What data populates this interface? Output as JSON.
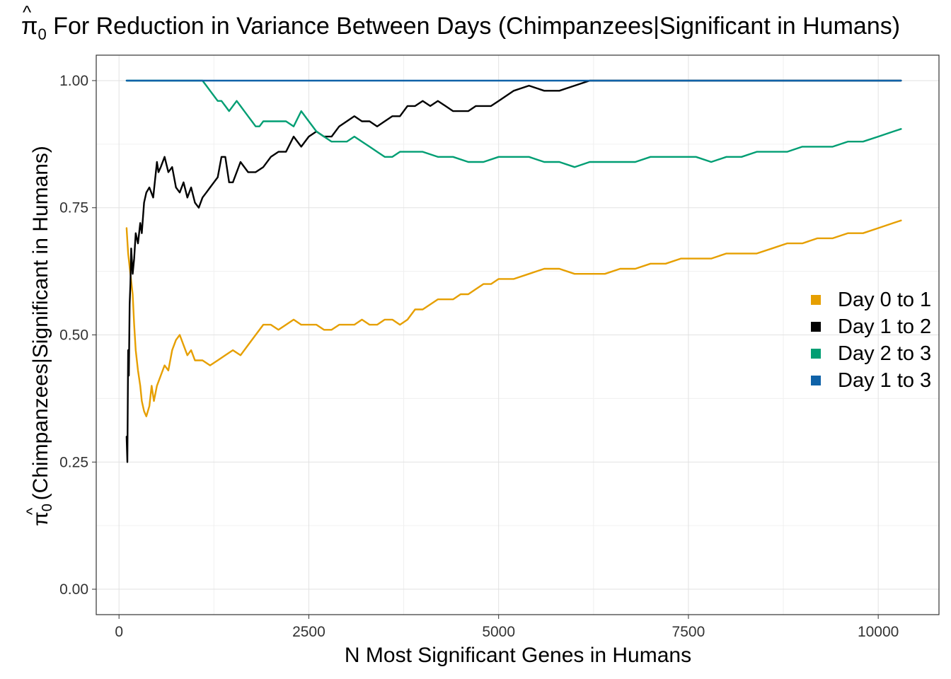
{
  "chart_data": {
    "type": "line",
    "title": "For Reduction in Variance Between Days (Chimpanzees|Significant in Humans)",
    "title_symbol": "π̂0",
    "xlabel": "N Most Significant Genes in Humans",
    "ylabel": "(Chimpanzees|Significant in Humans)",
    "ylabel_symbol": "π̂0",
    "xlim": [
      -300,
      10800
    ],
    "ylim": [
      -0.05,
      1.05
    ],
    "x_ticks": [
      0,
      2500,
      5000,
      7500,
      10000
    ],
    "x_tick_labels": [
      "0",
      "2500",
      "5000",
      "7500",
      "10000"
    ],
    "y_ticks": [
      0,
      0.25,
      0.5,
      0.75,
      1.0
    ],
    "y_tick_labels": [
      "0.00",
      "0.25",
      "0.50",
      "0.75",
      "1.00"
    ],
    "grid": true,
    "legend_position": "right",
    "series": [
      {
        "name": "Day 0 to 1",
        "color": "#E69F00",
        "x": [
          100,
          120,
          150,
          180,
          200,
          220,
          250,
          280,
          300,
          330,
          360,
          400,
          430,
          460,
          500,
          550,
          600,
          650,
          700,
          750,
          800,
          850,
          900,
          950,
          1000,
          1100,
          1200,
          1300,
          1400,
          1500,
          1600,
          1700,
          1800,
          1900,
          2000,
          2100,
          2200,
          2300,
          2400,
          2500,
          2600,
          2700,
          2800,
          2900,
          3000,
          3100,
          3200,
          3300,
          3400,
          3500,
          3600,
          3700,
          3800,
          3900,
          4000,
          4100,
          4200,
          4300,
          4400,
          4500,
          4600,
          4700,
          4800,
          4900,
          5000,
          5200,
          5400,
          5600,
          5800,
          6000,
          6200,
          6400,
          6600,
          6800,
          7000,
          7200,
          7400,
          7600,
          7800,
          8000,
          8200,
          8400,
          8600,
          8800,
          9000,
          9200,
          9400,
          9600,
          9800,
          10000,
          10200,
          10300
        ],
        "y": [
          0.71,
          0.66,
          0.62,
          0.58,
          0.52,
          0.47,
          0.43,
          0.4,
          0.37,
          0.35,
          0.34,
          0.36,
          0.4,
          0.37,
          0.4,
          0.42,
          0.44,
          0.43,
          0.47,
          0.49,
          0.5,
          0.48,
          0.46,
          0.47,
          0.45,
          0.45,
          0.44,
          0.45,
          0.46,
          0.47,
          0.46,
          0.48,
          0.5,
          0.52,
          0.52,
          0.51,
          0.52,
          0.53,
          0.52,
          0.52,
          0.52,
          0.51,
          0.51,
          0.52,
          0.52,
          0.52,
          0.53,
          0.52,
          0.52,
          0.53,
          0.53,
          0.52,
          0.53,
          0.55,
          0.55,
          0.56,
          0.57,
          0.57,
          0.57,
          0.58,
          0.58,
          0.59,
          0.6,
          0.6,
          0.61,
          0.61,
          0.62,
          0.63,
          0.63,
          0.62,
          0.62,
          0.62,
          0.63,
          0.63,
          0.64,
          0.64,
          0.65,
          0.65,
          0.65,
          0.66,
          0.66,
          0.66,
          0.67,
          0.68,
          0.68,
          0.69,
          0.69,
          0.7,
          0.7,
          0.71,
          0.72,
          0.725
        ]
      },
      {
        "name": "Day 1 to 2",
        "color": "#000000",
        "x": [
          100,
          110,
          120,
          130,
          140,
          150,
          160,
          180,
          200,
          220,
          250,
          280,
          300,
          330,
          360,
          400,
          450,
          500,
          520,
          550,
          600,
          650,
          700,
          750,
          800,
          850,
          900,
          950,
          1000,
          1050,
          1100,
          1150,
          1200,
          1250,
          1300,
          1350,
          1400,
          1450,
          1500,
          1600,
          1700,
          1800,
          1900,
          2000,
          2100,
          2200,
          2300,
          2400,
          2500,
          2600,
          2700,
          2800,
          2900,
          3000,
          3100,
          3200,
          3300,
          3400,
          3500,
          3600,
          3700,
          3800,
          3900,
          4000,
          4100,
          4200,
          4300,
          4400,
          4500,
          4600,
          4700,
          4800,
          4900,
          5000,
          5200,
          5400,
          5600,
          5800,
          6000,
          6200,
          6300,
          6350,
          10300
        ],
        "y": [
          0.3,
          0.25,
          0.47,
          0.42,
          0.56,
          0.6,
          0.67,
          0.62,
          0.65,
          0.7,
          0.68,
          0.72,
          0.7,
          0.76,
          0.78,
          0.79,
          0.77,
          0.84,
          0.82,
          0.83,
          0.85,
          0.82,
          0.83,
          0.79,
          0.78,
          0.8,
          0.77,
          0.79,
          0.76,
          0.75,
          0.77,
          0.78,
          0.79,
          0.8,
          0.81,
          0.85,
          0.85,
          0.8,
          0.8,
          0.84,
          0.82,
          0.82,
          0.83,
          0.85,
          0.86,
          0.86,
          0.89,
          0.87,
          0.89,
          0.9,
          0.89,
          0.89,
          0.91,
          0.92,
          0.93,
          0.92,
          0.92,
          0.91,
          0.92,
          0.93,
          0.93,
          0.95,
          0.95,
          0.96,
          0.95,
          0.96,
          0.95,
          0.94,
          0.94,
          0.94,
          0.95,
          0.95,
          0.95,
          0.96,
          0.98,
          0.99,
          0.98,
          0.98,
          0.99,
          1.0,
          1.0,
          1.0,
          1.0
        ]
      },
      {
        "name": "Day 2 to 3",
        "color": "#009E73",
        "x": [
          100,
          1100,
          1150,
          1200,
          1250,
          1300,
          1350,
          1400,
          1450,
          1500,
          1550,
          1600,
          1650,
          1700,
          1750,
          1800,
          1850,
          1900,
          1950,
          2000,
          2100,
          2200,
          2300,
          2400,
          2500,
          2600,
          2700,
          2800,
          2900,
          3000,
          3100,
          3200,
          3300,
          3400,
          3500,
          3600,
          3700,
          3800,
          3900,
          4000,
          4200,
          4400,
          4600,
          4800,
          5000,
          5200,
          5400,
          5600,
          5800,
          6000,
          6200,
          6400,
          6600,
          6800,
          7000,
          7200,
          7400,
          7600,
          7800,
          8000,
          8200,
          8400,
          8600,
          8800,
          9000,
          9200,
          9400,
          9600,
          9800,
          10000,
          10200,
          10300
        ],
        "y": [
          1.0,
          1.0,
          0.99,
          0.98,
          0.97,
          0.96,
          0.96,
          0.95,
          0.94,
          0.95,
          0.96,
          0.95,
          0.94,
          0.93,
          0.92,
          0.91,
          0.91,
          0.92,
          0.92,
          0.92,
          0.92,
          0.92,
          0.91,
          0.94,
          0.92,
          0.9,
          0.89,
          0.88,
          0.88,
          0.88,
          0.89,
          0.88,
          0.87,
          0.86,
          0.85,
          0.85,
          0.86,
          0.86,
          0.86,
          0.86,
          0.85,
          0.85,
          0.84,
          0.84,
          0.85,
          0.85,
          0.85,
          0.84,
          0.84,
          0.83,
          0.84,
          0.84,
          0.84,
          0.84,
          0.85,
          0.85,
          0.85,
          0.85,
          0.84,
          0.85,
          0.85,
          0.86,
          0.86,
          0.86,
          0.87,
          0.87,
          0.87,
          0.88,
          0.88,
          0.89,
          0.9,
          0.905
        ]
      },
      {
        "name": "Day 1 to 3",
        "color": "#0F62A8",
        "x": [
          100,
          10300
        ],
        "y": [
          1.0,
          1.0
        ]
      }
    ]
  }
}
